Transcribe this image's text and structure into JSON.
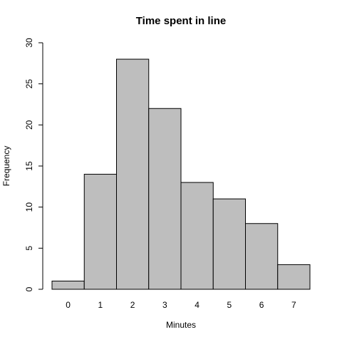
{
  "chart_data": {
    "type": "bar",
    "title": "Time spent in line",
    "x_label": "Minutes",
    "y_label": "Frequency",
    "categories": [
      "0",
      "1",
      "2",
      "3",
      "4",
      "5",
      "6",
      "7"
    ],
    "values": [
      1,
      14,
      28,
      22,
      13,
      11,
      8,
      3
    ],
    "color": "#bebebe",
    "ylim": [
      0,
      30
    ],
    "yticks": [
      0,
      5,
      10,
      15,
      20,
      25,
      30
    ],
    "grid": false
  }
}
